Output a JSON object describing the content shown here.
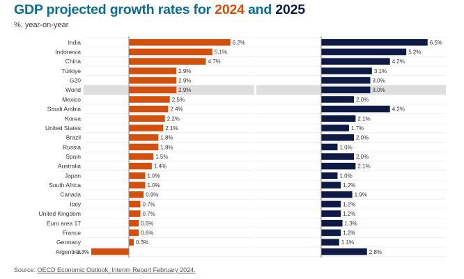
{
  "header": {
    "title_prefix": "GDP projected growth rates for ",
    "year_1": "2024",
    "title_and": " and ",
    "year_2": "2025",
    "subtitle": "%, year-on-year"
  },
  "footer": {
    "source_prefix": "Source: ",
    "source_link": "OECD Economic Outlook, Interim Report February 2024."
  },
  "colors": {
    "series_2024": "#d2500e",
    "series_2025": "#0f1a44",
    "highlight_band": "#dedede",
    "gridline": "#e6e6e6",
    "axis": "#888888"
  },
  "chart_data": [
    {
      "type": "bar",
      "orientation": "horizontal",
      "series_name": "2024",
      "title": "2024",
      "xlim": [
        -2.5,
        6.7
      ],
      "highlight_category": "World",
      "categories": [
        "India",
        "Indonesia",
        "China",
        "Türkiye",
        "G20",
        "World",
        "Mexico",
        "Saudi Arabia",
        "Korea",
        "United States",
        "Brazil",
        "Russia",
        "Spain",
        "Australia",
        "Japan",
        "South Africa",
        "Canada",
        "Italy",
        "United Kingdom",
        "Euro area 17",
        "France",
        "Germany",
        "Argentina"
      ],
      "values": [
        6.2,
        5.1,
        4.7,
        2.9,
        2.9,
        2.9,
        2.5,
        2.4,
        2.2,
        2.1,
        1.8,
        1.8,
        1.5,
        1.4,
        1.0,
        1.0,
        0.9,
        0.7,
        0.7,
        0.6,
        0.6,
        0.3,
        -2.3
      ],
      "labels": [
        "6.2%",
        "5.1%",
        "4.7%",
        "2.9%",
        "2.9%",
        "2.9%",
        "2.5%",
        "2.4%",
        "2.2%",
        "2.1%",
        "1.8%",
        "1.8%",
        "1.5%",
        "1.4%",
        "1.0%",
        "1.0%",
        "0.9%",
        "0.7%",
        "0.7%",
        "0.6%",
        "0.6%",
        "0.3%",
        "-2.3%"
      ]
    },
    {
      "type": "bar",
      "orientation": "horizontal",
      "series_name": "2025",
      "title": "2025",
      "xlim": [
        -0.5,
        6.7
      ],
      "highlight_category": "World",
      "categories": [
        "India",
        "Indonesia",
        "China",
        "Türkiye",
        "G20",
        "World",
        "Mexico",
        "Saudi Arabia",
        "Korea",
        "United States",
        "Brazil",
        "Russia",
        "Spain",
        "Australia",
        "Japan",
        "South Africa",
        "Canada",
        "Italy",
        "United Kingdom",
        "Euro area 17",
        "France",
        "Germany",
        "Argentina"
      ],
      "values": [
        6.5,
        5.2,
        4.2,
        3.1,
        3.0,
        3.0,
        2.0,
        4.2,
        2.1,
        1.7,
        2.0,
        1.0,
        2.0,
        2.1,
        1.0,
        1.2,
        1.9,
        1.2,
        1.2,
        1.3,
        1.2,
        1.1,
        2.8
      ],
      "labels": [
        "6.5%",
        "5.2%",
        "4.2%",
        "3.1%",
        "3.0%",
        "3.0%",
        "2.0%",
        "4.2%",
        "2.1%",
        "1.7%",
        "2.0%",
        "1.0%",
        "2.0%",
        "2.1%",
        "1.0%",
        "1.2%",
        "1.9%",
        "1.2%",
        "1.2%",
        "1.3%",
        "1.2%",
        "1.1%",
        "2.8%"
      ]
    }
  ]
}
